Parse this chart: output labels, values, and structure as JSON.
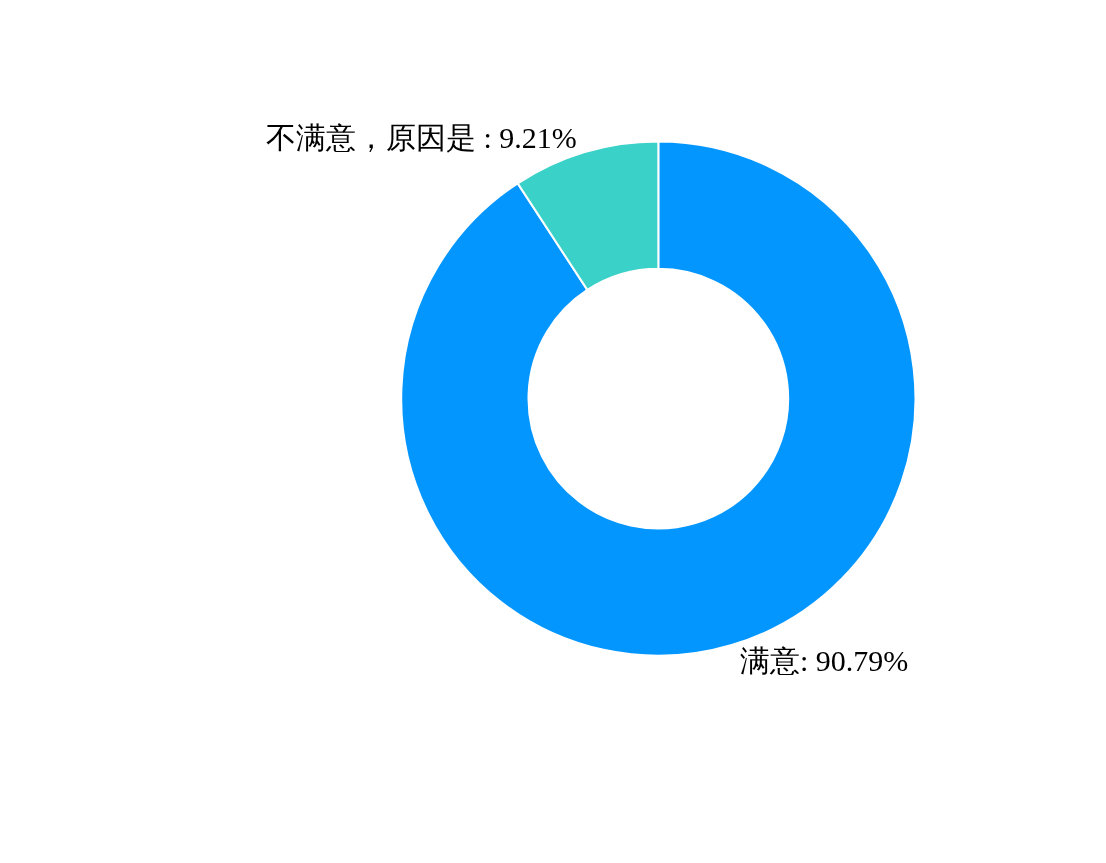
{
  "chart_data": {
    "type": "donut",
    "categories": [
      "满意",
      "不满意，原因是 "
    ],
    "values": [
      90.79,
      9.21
    ],
    "value_labels": [
      "90.79%",
      "9.21%"
    ],
    "colors": [
      "#0396ff",
      "#3ad1c8"
    ],
    "legend": false
  }
}
